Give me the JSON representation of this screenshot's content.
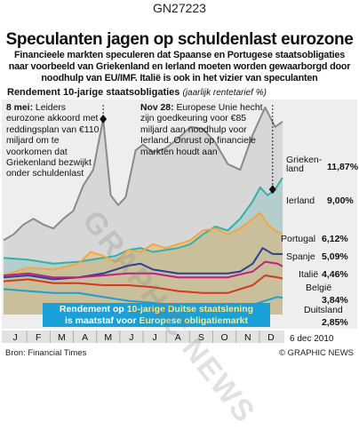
{
  "graphic_id": "GN27223",
  "headline": "Speculanten jagen op schuldenlast eurozone",
  "deck": "Financieele markten speculeren dat Spaanse en Portugese staatsobligaties naar voorbeeld van Griekenland en Ierland moeten worden gewaarborgd door noodhulp van EU/IMF. Italië is ook in het vizier van speculanten",
  "chart_heading": "Rendement 10-jarige staatsobligaties",
  "chart_subheading": "(jaarlijk rentetarief %)",
  "annotations": {
    "may": {
      "date": "8 mei:",
      "text": "Leiders eurozone akkoord met reddingsplan van €110 miljard om te voorkomen dat Griekenland bezwijkt onder schuldenlast"
    },
    "nov": {
      "date": "Nov 28:",
      "text": "Europese Unie hecht zijn goedkeuring voor €85 miljard aan noodhulp voor Ierland. Onrust op financiele markten houdt aan"
    }
  },
  "callout": {
    "line1_prefix": "Rendement op ",
    "line1_highlight": "10-jarige Duitse staatslening",
    "line2_prefix": "is maatstaf voor ",
    "line2_highlight": "Europese obligatiemarkt"
  },
  "source": "Bron: Financial Times",
  "credit": "© GRAPHIC NEWS",
  "watermark": "GRAPHIC NEWS",
  "date_label": "6 dec 2010",
  "colors": {
    "greece": "#8a8a8a",
    "ireland": "#35b0a8",
    "portugal": "#f4a640",
    "spain": "#2c3f99",
    "italy": "#c0207e",
    "belgium": "#d03a1f",
    "germany": "#1aa0d8",
    "background": "#eeeeee"
  },
  "chart_data": {
    "type": "line",
    "title": "Rendement 10-jarige staatsobligaties",
    "subtitle": "(jaarlijk rentetarief %)",
    "x_unit": "month (2010)",
    "categories": [
      "J",
      "F",
      "M",
      "A",
      "M",
      "J",
      "J",
      "A",
      "S",
      "O",
      "N",
      "D"
    ],
    "x_range": [
      0,
      11.2
    ],
    "ylim": [
      2,
      13
    ],
    "grid": false,
    "series": [
      {
        "name": "Griekenland",
        "label_value": "11,87%",
        "color": "#8a8a8a",
        "fill": true,
        "x": [
          0,
          0.4,
          0.8,
          1.2,
          1.6,
          2,
          2.4,
          2.8,
          3.2,
          3.6,
          4,
          4.3,
          4.6,
          4.9,
          5.3,
          5.6,
          6,
          6.5,
          7,
          7.5,
          8,
          8.5,
          9,
          9.5,
          10,
          10.5,
          10.9,
          11.2
        ],
        "y": [
          5.8,
          6.1,
          6.6,
          6.9,
          6.6,
          6.4,
          6.9,
          7.3,
          8.6,
          9.4,
          12.0,
          8.1,
          7.6,
          8.0,
          10.4,
          10.7,
          10.3,
          10.5,
          11.0,
          11.6,
          11.5,
          10.8,
          9.7,
          9.4,
          11.2,
          12.6,
          11.6,
          11.87
        ]
      },
      {
        "name": "Ierland",
        "label_value": "9,00%",
        "color": "#35b0a8",
        "fill": true,
        "x": [
          0,
          1,
          2,
          3,
          4,
          4.5,
          5,
          5.5,
          6,
          6.5,
          7,
          7.5,
          8,
          8.5,
          9,
          9.5,
          10,
          10.3,
          10.6,
          10.9,
          11.2
        ],
        "y": [
          4.9,
          4.8,
          4.6,
          4.7,
          4.9,
          5.0,
          5.3,
          5.4,
          5.2,
          5.3,
          5.4,
          5.6,
          6.1,
          6.5,
          6.3,
          6.9,
          7.8,
          8.5,
          8.1,
          8.4,
          9.0
        ]
      },
      {
        "name": "Portugal",
        "label_value": "6,12%",
        "color": "#f4a640",
        "fill": true,
        "x": [
          0,
          1,
          2,
          3,
          3.5,
          4,
          4.5,
          5,
          5.5,
          6,
          6.5,
          7,
          7.5,
          8,
          8.5,
          9,
          9.5,
          10,
          10.3,
          10.6,
          10.9,
          11.2
        ],
        "y": [
          4.0,
          4.4,
          4.3,
          4.6,
          5.2,
          5.0,
          4.7,
          5.3,
          5.2,
          5.6,
          5.4,
          5.6,
          5.8,
          6.3,
          6.4,
          6.1,
          6.4,
          6.9,
          7.2,
          6.6,
          6.3,
          6.12
        ]
      },
      {
        "name": "Spanje",
        "label_value": "5,09%",
        "color": "#2c3f99",
        "fill": false,
        "x": [
          0,
          1,
          2,
          3,
          4,
          5,
          5.5,
          6,
          7,
          8,
          9,
          9.5,
          10,
          10.4,
          10.8,
          11.2
        ],
        "y": [
          3.9,
          4.0,
          3.8,
          3.9,
          4.1,
          4.5,
          4.6,
          4.3,
          4.1,
          4.1,
          4.1,
          4.2,
          4.6,
          5.4,
          5.1,
          5.09
        ]
      },
      {
        "name": "Italië",
        "label_value": "4,46%",
        "color": "#c0207e",
        "fill": false,
        "x": [
          0,
          1,
          2,
          3,
          4,
          5,
          6,
          7,
          8,
          9,
          10,
          10.5,
          11,
          11.2
        ],
        "y": [
          4.0,
          4.1,
          3.9,
          3.9,
          4.0,
          4.1,
          4.1,
          3.9,
          3.9,
          3.9,
          4.2,
          4.7,
          4.6,
          4.46
        ]
      },
      {
        "name": "België",
        "label_value": "3,84%",
        "color": "#d03a1f",
        "fill": false,
        "x": [
          0,
          1,
          2,
          3,
          4,
          5,
          6,
          7,
          8,
          9,
          10,
          10.5,
          11,
          11.2
        ],
        "y": [
          3.7,
          3.8,
          3.6,
          3.6,
          3.5,
          3.5,
          3.4,
          3.2,
          3.1,
          3.1,
          3.5,
          4.0,
          3.9,
          3.84
        ]
      },
      {
        "name": "Duitsland",
        "label_value": "2,85%",
        "color": "#1aa0d8",
        "fill": false,
        "x": [
          0,
          1,
          2,
          3,
          4,
          5,
          6,
          7,
          8,
          9,
          10,
          10.5,
          11,
          11.2
        ],
        "y": [
          3.3,
          3.2,
          3.1,
          3.1,
          2.9,
          2.7,
          2.6,
          2.4,
          2.3,
          2.3,
          2.5,
          2.7,
          2.9,
          2.85
        ]
      }
    ],
    "markers": [
      {
        "label": "8 mei",
        "x": 4.0,
        "y": 12.0
      },
      {
        "label": "Nov 28",
        "x": 10.8,
        "y": 8.4
      }
    ]
  }
}
